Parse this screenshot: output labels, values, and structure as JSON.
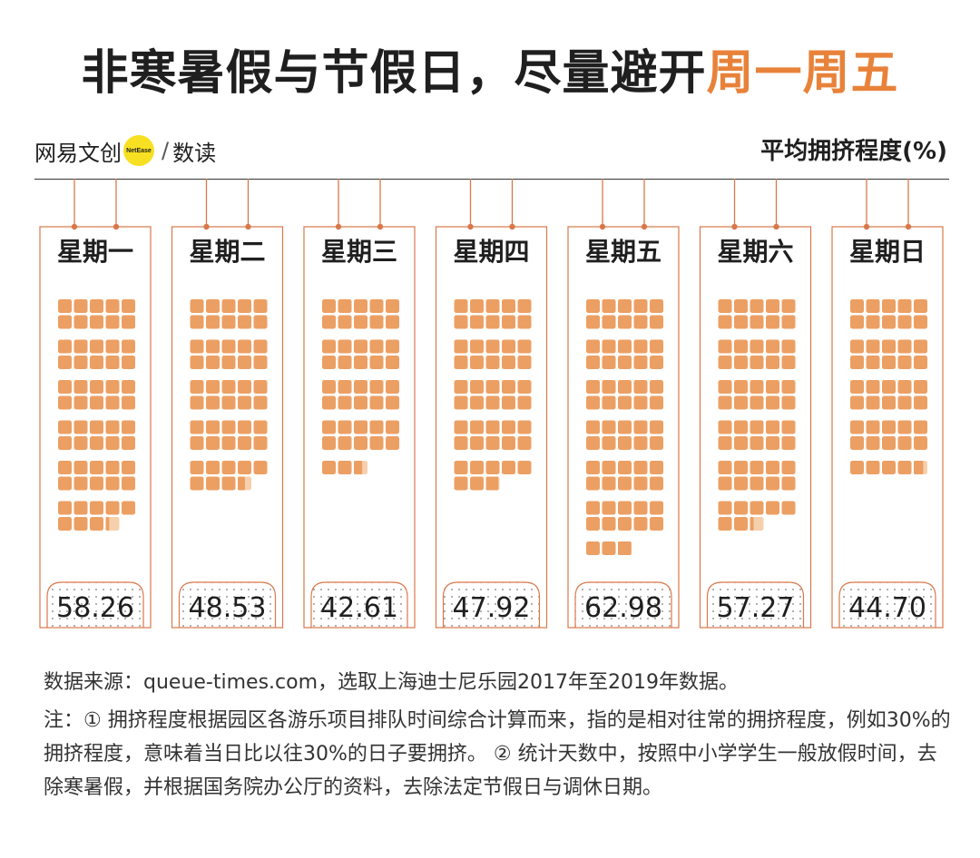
{
  "title": {
    "main": "非寒暑假与节假日，尽量避开",
    "highlight": "周一周五"
  },
  "brand": {
    "left": "网易文创",
    "badge": "NetEase",
    "sep": "/",
    "right": "数读"
  },
  "metric_label": "平均拥挤程度(%)",
  "colors": {
    "accent": "#e8823a",
    "block": "#ec9f63",
    "block_partial": "#f6d0ad",
    "line": "#d9784a",
    "text": "#1f1f1f"
  },
  "chart_data": {
    "type": "pictogram-bar",
    "ylabel": "平均拥挤程度(%)",
    "unit_per_block": 1,
    "categories": [
      "星期一",
      "星期二",
      "星期三",
      "星期四",
      "星期五",
      "星期六",
      "星期日"
    ],
    "values": [
      58.26,
      48.53,
      42.61,
      47.92,
      62.98,
      57.27,
      44.7
    ],
    "value_labels": [
      "58.26",
      "48.53",
      "42.61",
      "47.92",
      "62.98",
      "57.27",
      "44.70"
    ]
  },
  "source": "数据来源：queue-times.com，选取上海迪士尼乐园2017年至2019年数据。",
  "note": "注：① 拥挤程度根据园区各游乐项目排队时间综合计算而来，指的是相对往常的拥挤程度，例如30%的拥挤程度，意味着当日比以往30%的日子要拥挤。 ② 统计天数中，按照中小学学生一般放假时间，去除寒暑假，并根据国务院办公厅的资料，去除法定节假日与调休日期。"
}
